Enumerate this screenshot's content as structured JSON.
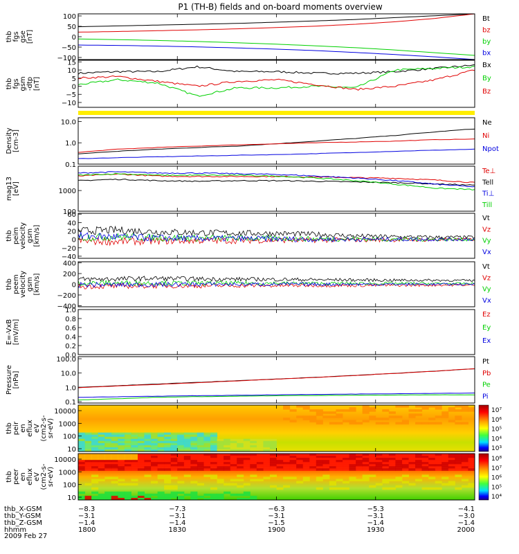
{
  "title": "P1 (TH-B) fields and on-board moments overview",
  "date_label": "2009 Feb 27",
  "colors": {
    "black": "#000000",
    "red": "#e00000",
    "green": "#00d000",
    "blue": "#0000e0",
    "yellow": "#ffee00"
  },
  "chart_data": [
    {
      "type": "line",
      "ylabel": [
        "thb",
        "fgs",
        "gse",
        "[nT]"
      ],
      "yticks": [
        "100",
        "50",
        "0",
        "−50",
        "−100"
      ],
      "ylim": [
        -110,
        110
      ],
      "series": [
        {
          "name": "Bt",
          "color": "black",
          "values": [
            48,
            52,
            56,
            60,
            64,
            70,
            76,
            83,
            92,
            101,
            110
          ]
        },
        {
          "name": "bz",
          "color": "red",
          "values": [
            22,
            25,
            29,
            33,
            38,
            44,
            51,
            60,
            72,
            88,
            110
          ]
        },
        {
          "name": "by",
          "color": "green",
          "values": [
            -11,
            -14,
            -18,
            -23,
            -29,
            -36,
            -44,
            -53,
            -64,
            -77,
            -90
          ]
        },
        {
          "name": "bx",
          "color": "blue",
          "values": [
            -40,
            -42,
            -45,
            -49,
            -54,
            -60,
            -67,
            -76,
            -86,
            -97,
            -110
          ]
        }
      ]
    },
    {
      "type": "line",
      "ylabel": [
        "thb",
        "fgs",
        "gsm",
        "-dtp",
        "[nT]"
      ],
      "yticks": [
        "15",
        "10",
        "5",
        "0",
        "−5",
        "−10"
      ],
      "ylim": [
        -13,
        16
      ],
      "series": [
        {
          "name": "Bx",
          "color": "black",
          "values": [
            8,
            9,
            9,
            12,
            9,
            9,
            8,
            8,
            9,
            11,
            13
          ]
        },
        {
          "name": "By",
          "color": "green",
          "values": [
            1,
            4,
            2,
            -6,
            -1,
            -1,
            0,
            -1,
            10,
            11,
            12
          ]
        },
        {
          "name": "Bz",
          "color": "red",
          "values": [
            5,
            6,
            3,
            0,
            3,
            4,
            1,
            -2,
            0,
            4,
            10
          ]
        }
      ]
    },
    {
      "type": "line",
      "ylabel": [
        "Density",
        "[cm-3]"
      ],
      "yticks": [
        "10.0",
        "1.0",
        "0.1"
      ],
      "ylim": [
        0.1,
        15
      ],
      "yscale": "log",
      "series": [
        {
          "name": "Ne",
          "color": "black",
          "values": [
            0.3,
            0.4,
            0.5,
            0.6,
            0.7,
            0.9,
            1.2,
            1.6,
            2.2,
            3.2,
            4.5
          ]
        },
        {
          "name": "Ni",
          "color": "red",
          "values": [
            0.35,
            0.5,
            0.6,
            0.7,
            0.8,
            0.9,
            1.0,
            1.1,
            1.2,
            1.4,
            1.5
          ]
        },
        {
          "name": "Npot",
          "color": "blue",
          "values": [
            0.18,
            0.2,
            0.22,
            0.24,
            0.26,
            0.28,
            0.31,
            0.35,
            0.4,
            0.45,
            0.5
          ]
        }
      ]
    },
    {
      "type": "line",
      "ylabel": [
        "mag13",
        "[eV]"
      ],
      "yticks": [
        "1000",
        "100"
      ],
      "ylim": [
        100,
        15000
      ],
      "yscale": "log",
      "series": [
        {
          "name": "Te⊥",
          "color": "red",
          "values": [
            5000,
            6200,
            5000,
            4800,
            4800,
            4800,
            4500,
            4200,
            3900,
            3200,
            2400
          ]
        },
        {
          "name": "Tell",
          "color": "black",
          "values": [
            3000,
            3500,
            3000,
            2800,
            3000,
            3000,
            2800,
            2600,
            2400,
            2100,
            1800
          ]
        },
        {
          "name": "Ti⊥",
          "color": "blue",
          "values": [
            7000,
            8000,
            7000,
            7000,
            6500,
            6000,
            5000,
            4000,
            3000,
            2000,
            1500
          ]
        },
        {
          "name": "Till",
          "color": "green",
          "values": [
            5500,
            6500,
            5500,
            5500,
            5500,
            5000,
            4000,
            3000,
            2000,
            1300,
            1100
          ]
        }
      ]
    },
    {
      "type": "line",
      "ylabel": [
        "thb",
        "peim",
        "velocity",
        "gsm",
        "[km/s]"
      ],
      "yticks": [
        "60",
        "40",
        "20",
        "0",
        "−20",
        "−40"
      ],
      "ylim": [
        -45,
        62
      ],
      "series": [
        {
          "name": "Vt",
          "color": "black",
          "values": [
            20,
            22,
            18,
            16,
            15,
            14,
            12,
            8,
            6,
            5,
            5
          ]
        },
        {
          "name": "Vz",
          "color": "red",
          "values": [
            -4,
            -5,
            -4,
            -3,
            -3,
            -2,
            -2,
            -1,
            -1,
            -1,
            0
          ]
        },
        {
          "name": "Vy",
          "color": "green",
          "values": [
            5,
            6,
            4,
            3,
            3,
            2,
            1,
            1,
            0,
            0,
            0
          ]
        },
        {
          "name": "Vx",
          "color": "blue",
          "values": [
            8,
            6,
            3,
            2,
            2,
            1,
            0,
            0,
            0,
            0,
            0
          ]
        }
      ]
    },
    {
      "type": "line",
      "ylabel": [
        "thb",
        "peem",
        "velocity",
        "gsm",
        "[km/s]"
      ],
      "yticks": [
        "400",
        "200",
        "0",
        "−200",
        "−400"
      ],
      "ylim": [
        -420,
        420
      ],
      "series": [
        {
          "name": "Vt",
          "color": "black",
          "values": [
            90,
            100,
            110,
            100,
            95,
            90,
            85,
            80,
            75,
            75,
            70
          ]
        },
        {
          "name": "Vz",
          "color": "red",
          "values": [
            -40,
            -35,
            -30,
            -30,
            -25,
            -25,
            -20,
            -20,
            -20,
            -15,
            -15
          ]
        },
        {
          "name": "Vy",
          "color": "green",
          "values": [
            20,
            25,
            25,
            20,
            20,
            20,
            15,
            15,
            15,
            15,
            10
          ]
        },
        {
          "name": "Vx",
          "color": "blue",
          "values": [
            -10,
            -10,
            -5,
            0,
            0,
            0,
            0,
            0,
            0,
            0,
            0
          ]
        }
      ]
    },
    {
      "type": "line",
      "ylabel": [
        "E=-VxB",
        "[mV/m]"
      ],
      "yticks": [
        "1.0",
        "0.8",
        "0.6",
        "0.4",
        "0.2",
        "0.0"
      ],
      "ylim": [
        0,
        1
      ],
      "series": [
        {
          "name": "Ez",
          "color": "red",
          "values": []
        },
        {
          "name": "Ey",
          "color": "green",
          "values": []
        },
        {
          "name": "Ex",
          "color": "blue",
          "values": []
        }
      ]
    },
    {
      "type": "line",
      "ylabel": [
        "Pressure",
        "[nPa]"
      ],
      "yticks": [
        "100.0",
        "10.0",
        "1.0",
        "0.1"
      ],
      "ylim": [
        0.08,
        140
      ],
      "yscale": "log",
      "series": [
        {
          "name": "Pt",
          "color": "black",
          "values": [
            1.0,
            1.3,
            1.7,
            2.2,
            2.9,
            3.8,
            5.0,
            6.8,
            9.5,
            13.5,
            20
          ]
        },
        {
          "name": "Pb",
          "color": "red",
          "values": [
            0.95,
            1.25,
            1.6,
            2.1,
            2.8,
            3.7,
            4.9,
            6.7,
            9.4,
            13.3,
            20
          ]
        },
        {
          "name": "Pe",
          "color": "green",
          "values": [
            0.13,
            0.16,
            0.2,
            0.22,
            0.24,
            0.26,
            0.27,
            0.28,
            0.29,
            0.3,
            0.3
          ]
        },
        {
          "name": "Pi",
          "color": "blue",
          "values": [
            0.2,
            0.22,
            0.24,
            0.26,
            0.28,
            0.3,
            0.32,
            0.34,
            0.36,
            0.38,
            0.4
          ]
        }
      ]
    },
    {
      "type": "heatmap",
      "ylabel": [
        "thb",
        "peir",
        "en",
        "eflux",
        "eV",
        "(cm2-s-",
        "sr-eV)"
      ],
      "yticks": [
        "10000",
        "1000",
        "100",
        "10"
      ],
      "colorbar_ticks": [
        "10⁷",
        "10⁶",
        "10⁵",
        "10⁴",
        "10³"
      ],
      "note": "ion energy flux spectrogram; yellow-orange dominant, cyan/green at low energies before 1830"
    },
    {
      "type": "heatmap",
      "ylabel": [
        "thb",
        "peer",
        "en",
        "eflux",
        "eV",
        "(cm2-s-",
        "sr-eV)"
      ],
      "yticks": [
        "10000",
        "1000",
        "100",
        "10"
      ],
      "colorbar_ticks": [
        "10⁸",
        "10⁷",
        "10⁶",
        "10⁵",
        "10⁴"
      ],
      "note": "electron energy flux spectrogram; red band at high energies, yellow/green below"
    }
  ],
  "x_axis": {
    "rows": [
      {
        "label": "thb_X-GSM",
        "values": [
          "−8.3",
          "−7.3",
          "−6.3",
          "−5.3",
          "−4.1"
        ]
      },
      {
        "label": "thb_Y-GSM",
        "values": [
          "−3.1",
          "−3.1",
          "−3.1",
          "−3.1",
          "−3.0"
        ]
      },
      {
        "label": "thb_Z-GSM",
        "values": [
          "−1.4",
          "−1.4",
          "−1.5",
          "−1.4",
          "−1.4"
        ]
      },
      {
        "label": "hhmm",
        "values": [
          "1800",
          "1830",
          "1900",
          "1930",
          "2000"
        ]
      }
    ]
  }
}
